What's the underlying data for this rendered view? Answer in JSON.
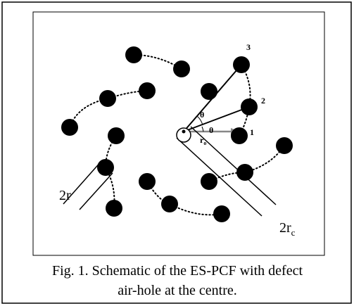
{
  "figure": {
    "labels": {
      "n3": "3",
      "n2": "2",
      "n1": "1",
      "theta_upper": "θ",
      "theta_lower": "θ",
      "ro": {
        "text": "r",
        "sub": "o"
      },
      "two_r": "2r",
      "two_rc": {
        "text": "2r",
        "sub": "c"
      }
    },
    "caption": [
      "Fig. 1. Schematic of the ES-PCF with defect",
      "air-hole at the centre."
    ]
  }
}
